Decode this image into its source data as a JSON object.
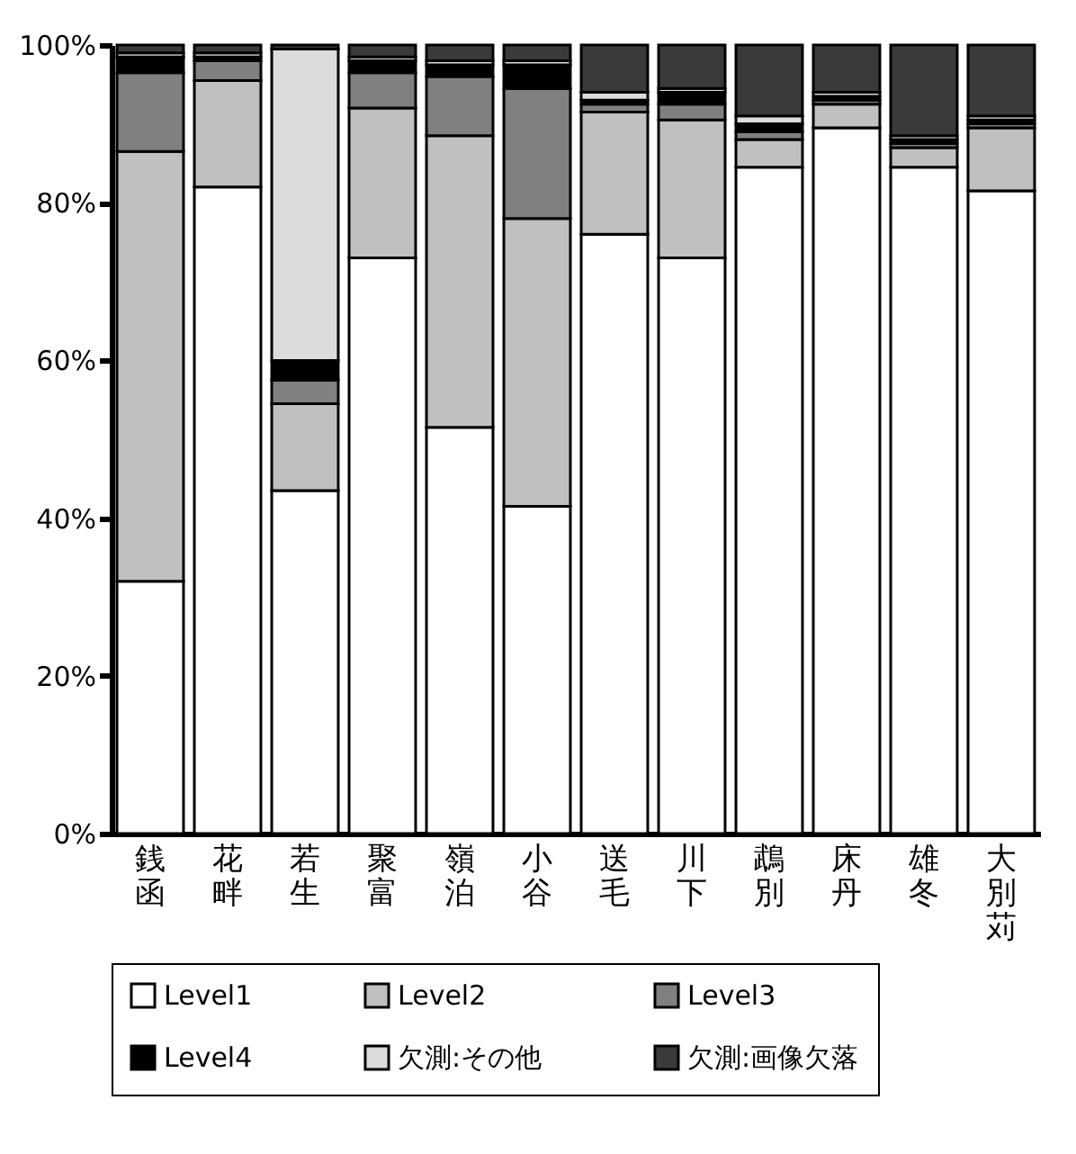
{
  "chart_data": {
    "type": "bar",
    "stacked": true,
    "categories": [
      "銭函",
      "花畔",
      "若生",
      "聚富",
      "嶺泊",
      "小谷",
      "送毛",
      "川下",
      "鵡別",
      "床丹",
      "雄冬",
      "大別苅"
    ],
    "series": [
      {
        "name": "Level1",
        "color": "#ffffff",
        "values": [
          32,
          82,
          43.5,
          73,
          51.5,
          41.5,
          76,
          73,
          84.5,
          89.5,
          84.5,
          81.5
        ]
      },
      {
        "name": "Level2",
        "color": "#c0c0c0",
        "values": [
          54.5,
          13.5,
          11,
          19,
          37,
          36.5,
          15.5,
          17.5,
          3.5,
          3,
          2.5,
          8
        ]
      },
      {
        "name": "Level3",
        "color": "#808080",
        "values": [
          10,
          2.5,
          3,
          4.5,
          7.5,
          16.5,
          1,
          2,
          1,
          0.5,
          0.5,
          0.5
        ]
      },
      {
        "name": "Level4",
        "color": "#000000",
        "values": [
          2,
          0.5,
          2.5,
          1.5,
          1.5,
          3,
          0.5,
          1.5,
          1,
          0.5,
          0.5,
          0.5
        ]
      },
      {
        "name": "欠測:その他",
        "color": "#dcdcdc",
        "values": [
          0.5,
          0.5,
          39.5,
          0.5,
          0.5,
          0.5,
          1,
          0.5,
          1,
          0.5,
          0.5,
          0.5
        ]
      },
      {
        "name": "欠測:画像欠落",
        "color": "#3a3a3a",
        "values": [
          1,
          1,
          0.5,
          1.5,
          2,
          2,
          6,
          5.5,
          9,
          6,
          11.5,
          9
        ]
      }
    ],
    "ylim": [
      0,
      100
    ],
    "yticks": [
      {
        "value": 0,
        "label": "0%"
      },
      {
        "value": 20,
        "label": "20%"
      },
      {
        "value": 40,
        "label": "40%"
      },
      {
        "value": 60,
        "label": "60%"
      },
      {
        "value": 80,
        "label": "80%"
      },
      {
        "value": 100,
        "label": "100%"
      }
    ],
    "legend": "bottom",
    "grid": false
  }
}
